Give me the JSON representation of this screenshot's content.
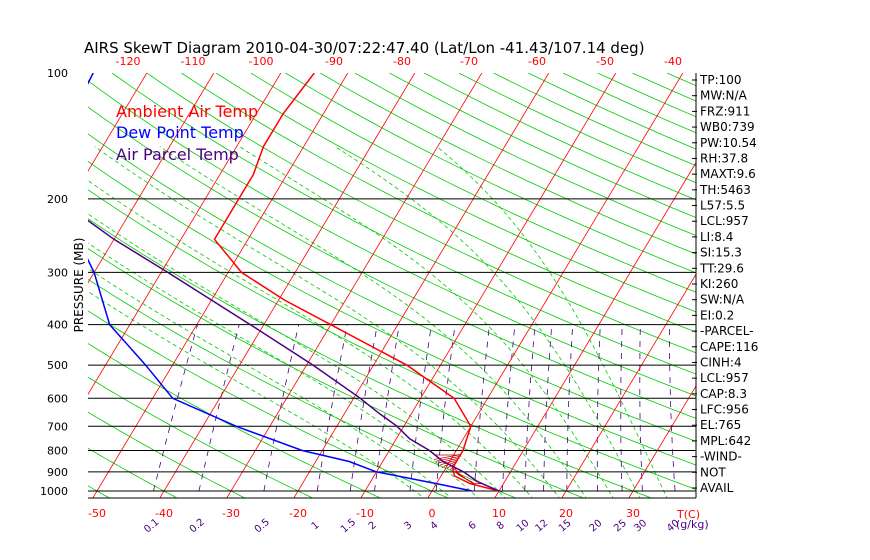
{
  "chart_data": {
    "type": "line",
    "title": "AIRS SkewT Diagram 2010-04-30/07:22:47.40 (Lat/Lon -41.43/107.14 deg)",
    "ylabel": "PRESSURE (MB)",
    "x_unit_label": "T(C)",
    "mixing_ratio_unit_label": "(g/kg)",
    "legend": [
      {
        "label": "Ambient Air Temp",
        "color": "#ff0000"
      },
      {
        "label": "Dew Point Temp",
        "color": "#0000ff"
      },
      {
        "label": "Air Parcel Temp",
        "color": "#4b0082"
      }
    ],
    "pressure_ticks": [
      100,
      200,
      300,
      400,
      500,
      600,
      700,
      800,
      900,
      1000
    ],
    "top_temp_ticks": [
      -120,
      -110,
      -100,
      -90,
      -80,
      -70,
      -60,
      -50,
      -40
    ],
    "bottom_temp_ticks": [
      -50,
      -40,
      -30,
      -20,
      -10,
      0,
      10,
      20,
      30
    ],
    "mixing_ratio_ticks": [
      "0.1",
      "0.2",
      "0.5",
      "1",
      "1.5",
      "2",
      "3",
      "4",
      "6",
      "8",
      "10",
      "12",
      "15",
      "20",
      "25",
      "30",
      "40"
    ],
    "temp_range_at_1000mb": [
      -50,
      40
    ],
    "pressure_range": [
      100,
      1000
    ],
    "y_scale": "log",
    "grid": true,
    "series": [
      {
        "name": "Ambient Air Temp",
        "color": "#ff0000",
        "points": [
          [
            1000,
            10
          ],
          [
            960,
            5
          ],
          [
            920,
            2
          ],
          [
            880,
            1
          ],
          [
            850,
            1
          ],
          [
            800,
            1
          ],
          [
            700,
            0
          ],
          [
            600,
            -5
          ],
          [
            500,
            -15
          ],
          [
            400,
            -30
          ],
          [
            350,
            -39
          ],
          [
            300,
            -48
          ],
          [
            250,
            -55
          ],
          [
            200,
            -55
          ],
          [
            175,
            -55
          ],
          [
            150,
            -56
          ],
          [
            125,
            -56
          ],
          [
            100,
            -55
          ]
        ]
      },
      {
        "name": "Dew Point Temp",
        "color": "#0000ff",
        "points": [
          [
            1000,
            6
          ],
          [
            960,
            0
          ],
          [
            900,
            -10
          ],
          [
            850,
            -15
          ],
          [
            800,
            -23
          ],
          [
            700,
            -35
          ],
          [
            600,
            -47
          ],
          [
            500,
            -54
          ],
          [
            400,
            -63
          ],
          [
            300,
            -70
          ],
          [
            200,
            -82
          ],
          [
            150,
            -87
          ],
          [
            100,
            -88
          ]
        ]
      },
      {
        "name": "Air Parcel Temp",
        "color": "#4b0082",
        "points": [
          [
            1000,
            10
          ],
          [
            950,
            6
          ],
          [
            900,
            3
          ],
          [
            850,
            -1
          ],
          [
            800,
            -4
          ],
          [
            750,
            -8
          ],
          [
            700,
            -11
          ],
          [
            650,
            -15
          ],
          [
            600,
            -19
          ],
          [
            500,
            -29
          ],
          [
            400,
            -42
          ],
          [
            300,
            -59
          ],
          [
            250,
            -70
          ],
          [
            200,
            -82
          ]
        ]
      }
    ]
  },
  "indices": [
    "TP:100",
    "MW:N/A",
    "FRZ:911",
    "WB0:739",
    "PW:10.54",
    "RH:37.8",
    "MAXT:9.6",
    "TH:5463",
    "L57:5.5",
    "LCL:957",
    "LI:8.4",
    "SI:15.3",
    "TT:29.6",
    "KI:260",
    "SW:N/A",
    "EI:0.2",
    "-PARCEL-",
    "CAPE:116",
    "CINH:4",
    "LCL:957",
    "CAP:8.3",
    "LFC:956",
    "EL:765",
    "MPL:642",
    "-WIND-",
    "NOT",
    "AVAIL"
  ],
  "colors": {
    "dry_adiabat": "#00cc00",
    "moist_adiabat": "#00cc00",
    "isotherm": "#ff0000",
    "mixing_ratio": "#4b0082",
    "frame": "#000000",
    "hatch": "#cc0000"
  }
}
